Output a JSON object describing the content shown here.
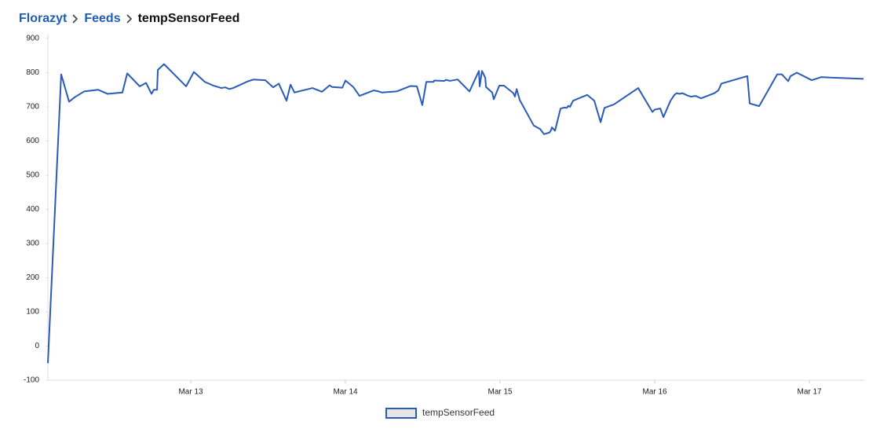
{
  "breadcrumb": [
    "Florazyt",
    "Feeds",
    "tempSensorFeed"
  ],
  "chart_data": {
    "type": "line",
    "x": [
      12.076,
      12.162,
      12.213,
      12.249,
      12.31,
      12.401,
      12.462,
      12.558,
      12.589,
      12.67,
      12.711,
      12.746,
      12.761,
      12.782,
      12.787,
      12.827,
      12.893,
      12.97,
      13.02,
      13.091,
      13.147,
      13.198,
      13.223,
      13.249,
      13.274,
      13.371,
      13.406,
      13.482,
      13.533,
      13.569,
      13.619,
      13.645,
      13.67,
      13.787,
      13.848,
      13.898,
      13.914,
      13.98,
      14.0,
      14.051,
      14.091,
      14.183,
      14.208,
      14.234,
      14.33,
      14.421,
      14.462,
      14.497,
      14.523,
      14.569,
      14.574,
      14.64,
      14.65,
      14.675,
      14.726,
      14.802,
      14.863,
      14.868,
      14.883,
      14.904,
      14.909,
      14.949,
      14.959,
      14.995,
      15.025,
      15.086,
      15.096,
      15.107,
      15.127,
      15.218,
      15.259,
      15.284,
      15.32,
      15.33,
      15.335,
      15.355,
      15.391,
      15.416,
      15.431,
      15.442,
      15.452,
      15.472,
      15.563,
      15.609,
      15.65,
      15.675,
      15.736,
      15.893,
      15.985,
      16.0,
      16.036,
      16.056,
      16.102,
      16.127,
      16.142,
      16.162,
      16.178,
      16.213,
      16.234,
      16.264,
      16.299,
      16.386,
      16.411,
      16.431,
      16.599,
      16.614,
      16.675,
      16.792,
      16.822,
      16.863,
      16.878,
      16.919,
      16.954,
      17.015,
      17.076,
      17.122,
      17.35
    ],
    "series": [
      {
        "name": "tempSensorFeed",
        "color": "#2b5bb5",
        "values": [
          -50,
          795,
          715,
          728,
          745,
          750,
          738,
          742,
          798,
          760,
          770,
          738,
          750,
          750,
          808,
          825,
          795,
          760,
          802,
          773,
          762,
          755,
          757,
          752,
          755,
          775,
          780,
          778,
          757,
          768,
          718,
          765,
          742,
          755,
          744,
          763,
          758,
          756,
          777,
          758,
          732,
          748,
          746,
          742,
          745,
          761,
          760,
          705,
          773,
          773,
          777,
          776,
          779,
          776,
          780,
          745,
          805,
          760,
          805,
          785,
          758,
          742,
          722,
          762,
          762,
          740,
          730,
          752,
          720,
          645,
          635,
          620,
          625,
          632,
          640,
          630,
          695,
          698,
          697,
          703,
          700,
          718,
          735,
          718,
          655,
          697,
          707,
          755,
          685,
          692,
          695,
          670,
          718,
          735,
          740,
          738,
          740,
          733,
          730,
          732,
          725,
          740,
          748,
          768,
          790,
          710,
          702,
          795,
          795,
          775,
          790,
          800,
          792,
          778,
          787,
          786,
          782
        ]
      }
    ],
    "xlim": [
      12.076,
      17.355
    ],
    "xticks": [
      {
        "value": 13,
        "label": "Mar 13"
      },
      {
        "value": 14,
        "label": "Mar 14"
      },
      {
        "value": 15,
        "label": "Mar 15"
      },
      {
        "value": 16,
        "label": "Mar 16"
      },
      {
        "value": 17,
        "label": "Mar 17"
      }
    ],
    "ylim": [
      -100,
      900
    ],
    "yticks": [
      -100,
      0,
      100,
      200,
      300,
      400,
      500,
      600,
      700,
      800,
      900
    ],
    "grid": false,
    "legend": "bottom"
  }
}
